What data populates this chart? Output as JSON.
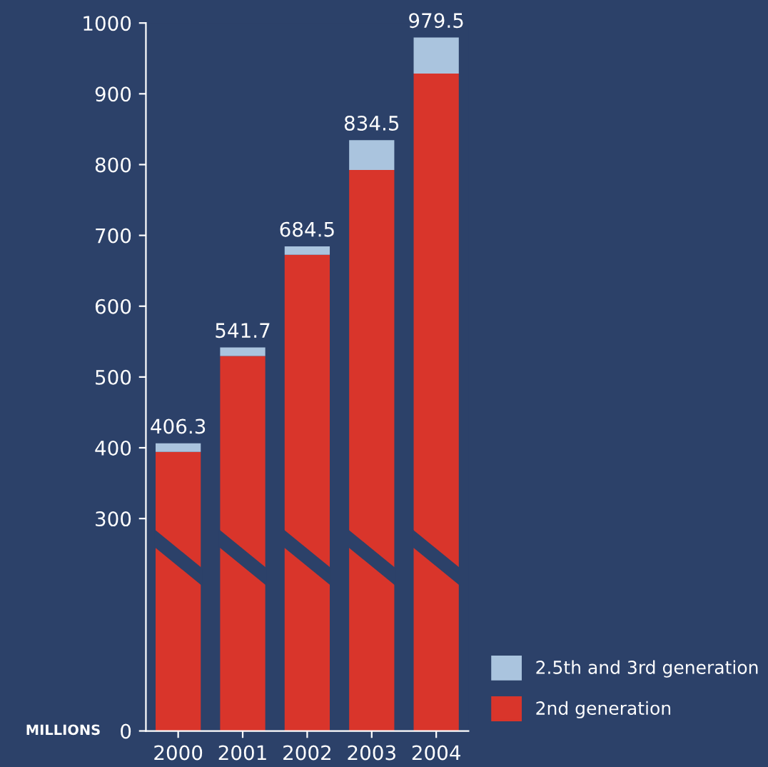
{
  "chart_data": {
    "type": "bar",
    "stacked": true,
    "categories": [
      "2000",
      "2001",
      "2002",
      "2003",
      "2004"
    ],
    "ylabel": "MILLIONS",
    "series": [
      {
        "name": "2nd generation",
        "color": "#d9352b",
        "values": [
          394.3,
          529.7,
          672.5,
          792.5,
          928.5
        ]
      },
      {
        "name": "2.5th and 3rd generation",
        "color": "#aac4de",
        "values": [
          12,
          12,
          12,
          42,
          51
        ]
      }
    ],
    "totals": [
      "406.3",
      "541.7",
      "684.5",
      "834.5",
      "979.5"
    ],
    "ylim": [
      0,
      1000
    ],
    "yticks": [
      0,
      300,
      400,
      500,
      600,
      700,
      800,
      900,
      1000
    ],
    "grid": false,
    "legend": "bottom right"
  }
}
